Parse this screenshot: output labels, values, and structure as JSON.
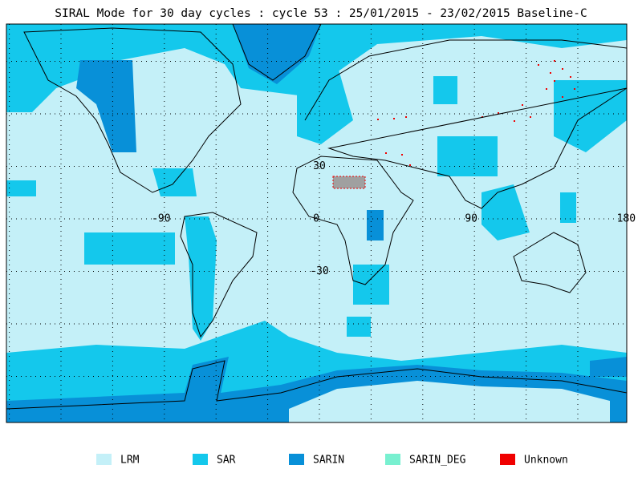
{
  "title": "SIRAL Mode for 30 day cycles : cycle 53 : 25/01/2015 - 23/02/2015 Baseline-C",
  "graticule": {
    "lon_labels": [
      -90,
      0,
      90,
      180
    ],
    "lat_labels": [
      30,
      -30
    ]
  },
  "legend": [
    {
      "label": "LRM",
      "color": "#c4f0f8"
    },
    {
      "label": "SAR",
      "color": "#14c8ec"
    },
    {
      "label": "SARIN",
      "color": "#0890d8"
    },
    {
      "label": "SARIN_DEG",
      "color": "#78f0d0"
    },
    {
      "label": "Unknown",
      "color": "#f00000"
    }
  ]
}
